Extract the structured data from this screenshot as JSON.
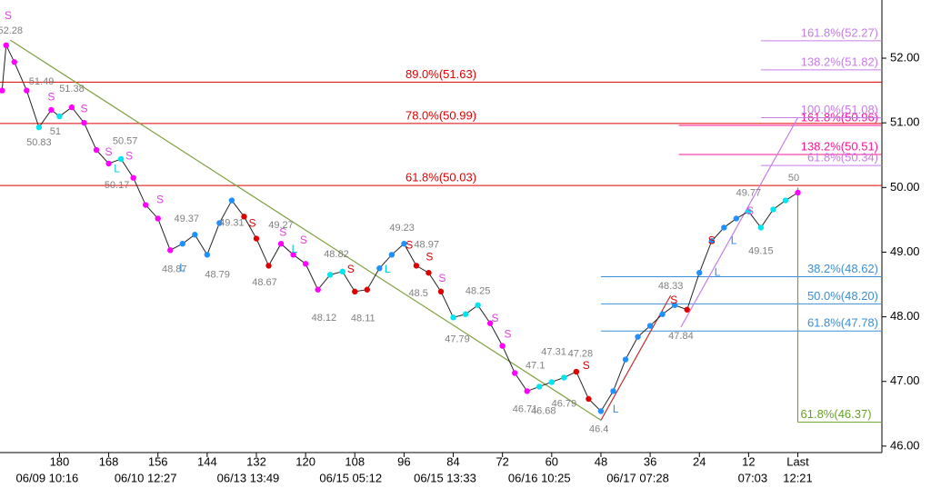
{
  "chart_data": {
    "type": "line",
    "xlim": [
      194.5,
      -20.5
    ],
    "ylim": [
      45.9,
      52.9
    ],
    "xticks": [
      180,
      168,
      156,
      144,
      132,
      120,
      108,
      96,
      84,
      72,
      60,
      48,
      36,
      24,
      12,
      {
        "value": 0,
        "label": "Last"
      }
    ],
    "xticks2": [
      {
        "value": 183,
        "label": "06/09 10:16"
      },
      {
        "value": 159,
        "label": "06/10 12:27"
      },
      {
        "value": 134,
        "label": "06/13 13:49"
      },
      {
        "value": 109,
        "label": "06/15 05:12"
      },
      {
        "value": 86,
        "label": "06/15 13:33"
      },
      {
        "value": 63,
        "label": "06/16 10:25"
      },
      {
        "value": 39,
        "label": "06/17 07:28"
      },
      {
        "value": 11,
        "label": "07:03"
      },
      {
        "value": 0,
        "label": "12:21"
      }
    ],
    "yticks": [
      {
        "value": 46,
        "label": "46.00"
      },
      {
        "value": 47,
        "label": "47.00"
      },
      {
        "value": 48,
        "label": "48.00"
      },
      {
        "value": 49,
        "label": "49.00"
      },
      {
        "value": 50,
        "label": "50.00"
      },
      {
        "value": 51,
        "label": "51.00"
      },
      {
        "value": 52,
        "label": "52.00"
      }
    ],
    "x": [
      194,
      193,
      191,
      188,
      185,
      182,
      180,
      177,
      174,
      171,
      168,
      165,
      162,
      159,
      156,
      153,
      150,
      147,
      144,
      141,
      138,
      135,
      132,
      129,
      126,
      123,
      120,
      117,
      114,
      111,
      108,
      105,
      102,
      99,
      96,
      93,
      90,
      87,
      84,
      81,
      78,
      75,
      72,
      69,
      66,
      63,
      60,
      57,
      54,
      51,
      48,
      45,
      42,
      39,
      36,
      33,
      30,
      27,
      24,
      21,
      18,
      15,
      12,
      9,
      6,
      3,
      0
    ],
    "values": [
      51.5,
      52.2,
      51.94,
      51.5,
      50.93,
      51.2,
      51.1,
      51.24,
      51.0,
      50.58,
      50.37,
      50.44,
      50.15,
      49.73,
      49.52,
      49.03,
      49.13,
      49.27,
      48.96,
      49.45,
      49.8,
      49.55,
      49.21,
      48.79,
      49.13,
      48.96,
      48.82,
      48.42,
      48.65,
      48.7,
      48.39,
      48.42,
      48.75,
      48.96,
      49.13,
      48.79,
      48.68,
      48.39,
      47.99,
      48.04,
      48.18,
      47.9,
      47.55,
      47.13,
      46.85,
      46.92,
      46.99,
      47.06,
      47.15,
      46.73,
      46.54,
      46.85,
      47.34,
      47.69,
      47.86,
      48.04,
      48.18,
      48.11,
      48.68,
      49.17,
      49.38,
      49.52,
      49.63,
      49.38,
      49.66,
      49.8,
      49.92
    ],
    "point_colors": [
      "#ff00ff",
      "#ff00ff",
      "#ff00ff",
      "#ff00ff",
      "#00e5ee",
      "#ff00ff",
      "#00e5ee",
      "#ff00ff",
      "#ff00ff",
      "#ff00ff",
      "#ff00ff",
      "#00e5ee",
      "#ff00ff",
      "#ff00ff",
      "#ff00ff",
      "#ff00ff",
      "#1e90ff",
      "#1e90ff",
      "#1e90ff",
      "#1e90ff",
      "#1e90ff",
      "#e00000",
      "#e00000",
      "#e00000",
      "#ff00ff",
      "#ff00ff",
      "#ff00ff",
      "#ff00ff",
      "#00e5ee",
      "#00e5ee",
      "#e00000",
      "#e00000",
      "#1e90ff",
      "#1e90ff",
      "#1e90ff",
      "#e00000",
      "#e00000",
      "#e00000",
      "#00e5ee",
      "#00e5ee",
      "#00e5ee",
      "#ff00ff",
      "#ff00ff",
      "#ff00ff",
      "#ff00ff",
      "#00e5ee",
      "#00e5ee",
      "#00e5ee",
      "#e00000",
      "#e00000",
      "#1e90ff",
      "#1e90ff",
      "#1e90ff",
      "#1e90ff",
      "#1e90ff",
      "#1e90ff",
      "#1e90ff",
      "#e00000",
      "#1e90ff",
      "#1e90ff",
      "#1e90ff",
      "#1e90ff",
      "#00e5ee",
      "#00e5ee",
      "#00e5ee",
      "#00e5ee",
      "#ff00ff"
    ],
    "levels": [
      {
        "value": 51.63,
        "label": "89.0%(51.63)",
        "color": "#e00000",
        "from": 194.5,
        "label_at": "center"
      },
      {
        "value": 50.99,
        "label": "78.0%(50.99)",
        "color": "#e00000",
        "from": 194.5,
        "label_at": "center"
      },
      {
        "value": 50.03,
        "label": "61.8%(50.03)",
        "color": "#e00000",
        "from": 194.5,
        "label_at": "center"
      },
      {
        "value": 50.96,
        "label": "161.8%(50.96)",
        "color": "#ff1493",
        "from": 29,
        "label_at": "end"
      },
      {
        "value": 50.51,
        "label": "138.2%(50.51)",
        "color": "#ff1493",
        "from": 29,
        "label_at": "end"
      },
      {
        "value": 52.27,
        "label": "161.8%(52.27)",
        "color": "#c77ce8",
        "from": 9,
        "label_at": "end"
      },
      {
        "value": 51.82,
        "label": "138.2%(51.82)",
        "color": "#c77ce8",
        "from": 9,
        "label_at": "end"
      },
      {
        "value": 51.08,
        "label": "100.0%(51.08)",
        "color": "#c77ce8",
        "from": 9,
        "label_at": "end"
      },
      {
        "value": 50.34,
        "label": "61.8%(50.34)",
        "color": "#c77ce8",
        "from": 9,
        "label_at": "end"
      },
      {
        "value": 48.62,
        "label": "38.2%(48.62)",
        "color": "#3c8fd8",
        "from": 48,
        "label_at": "end"
      },
      {
        "value": 48.2,
        "label": "50.0%(48.20)",
        "color": "#3c8fd8",
        "from": 48,
        "label_at": "end"
      },
      {
        "value": 47.78,
        "label": "61.8%(47.78)",
        "color": "#3c8fd8",
        "from": 48,
        "label_at": "end"
      },
      {
        "value": 46.37,
        "label": "61.8%(46.37)",
        "color": "#6aa02a",
        "from": 0,
        "label_at": "start"
      }
    ],
    "trendlines": [
      {
        "from": [
          192,
          52.28
        ],
        "to": [
          48,
          46.4
        ],
        "color": "#7fa040"
      },
      {
        "from": [
          48,
          46.4
        ],
        "to": [
          31,
          48.33
        ],
        "color": "#c03030"
      },
      {
        "from": [
          28.5,
          47.84
        ],
        "to": [
          0,
          51.08
        ],
        "color": "#c77ce8"
      },
      {
        "from": [
          0,
          50.0
        ],
        "to": [
          0,
          46.37
        ],
        "color": "#7fa040"
      }
    ],
    "annotations": [
      {
        "x": 192,
        "value": 52.28,
        "pos": "above"
      },
      {
        "x": 184.4,
        "value": 51.49,
        "pos": "above"
      },
      {
        "x": 177,
        "value": 51.38,
        "pos": "above"
      },
      {
        "x": 181,
        "value": 51.0,
        "pos": "below"
      },
      {
        "x": 185,
        "value": 50.83,
        "pos": "below"
      },
      {
        "x": 164,
        "value": 50.57,
        "pos": "above"
      },
      {
        "x": 166,
        "value": 50.17,
        "pos": "below"
      },
      {
        "x": 149,
        "value": 49.37,
        "pos": "above"
      },
      {
        "x": 152,
        "value": 48.87,
        "pos": "below"
      },
      {
        "x": 141.5,
        "value": 48.79,
        "pos": "below"
      },
      {
        "x": 138,
        "value": 49.31,
        "pos": "above"
      },
      {
        "x": 126,
        "value": 49.27,
        "pos": "above"
      },
      {
        "x": 130,
        "value": 48.67,
        "pos": "below"
      },
      {
        "x": 112.5,
        "value": 48.82,
        "pos": "above"
      },
      {
        "x": 115.5,
        "value": 48.12,
        "pos": "below"
      },
      {
        "x": 106,
        "value": 48.11,
        "pos": "below"
      },
      {
        "x": 96.5,
        "value": 49.23,
        "pos": "above"
      },
      {
        "x": 90.5,
        "value": 48.97,
        "pos": "above"
      },
      {
        "x": 92.5,
        "value": 48.5,
        "pos": "below"
      },
      {
        "x": 78,
        "value": 48.25,
        "pos": "above"
      },
      {
        "x": 83,
        "value": 47.79,
        "pos": "below"
      },
      {
        "x": 59.5,
        "value": 47.31,
        "pos": "above"
      },
      {
        "x": 53,
        "value": 47.28,
        "pos": "above"
      },
      {
        "x": 64,
        "value": 47.1,
        "pos": "above"
      },
      {
        "x": 66.5,
        "value": 46.71,
        "pos": "below"
      },
      {
        "x": 62,
        "value": 46.68,
        "pos": "below"
      },
      {
        "x": 57,
        "value": 46.79,
        "pos": "below"
      },
      {
        "x": 48.5,
        "value": 46.4,
        "pos": "below"
      },
      {
        "x": 31,
        "value": 48.33,
        "pos": "above"
      },
      {
        "x": 28.5,
        "value": 47.84,
        "pos": "below"
      },
      {
        "x": 12,
        "value": 49.77,
        "pos": "above"
      },
      {
        "x": 9,
        "value": 49.15,
        "pos": "below"
      },
      {
        "x": 1,
        "value": 50.0,
        "pos": "above"
      }
    ],
    "signals": [
      {
        "x": 192.5,
        "value": 52.65,
        "label": "S",
        "color": "#e040e0"
      },
      {
        "x": 182,
        "value": 51.39,
        "label": "S",
        "color": "#e040e0"
      },
      {
        "x": 174,
        "value": 51.21,
        "label": "S",
        "color": "#e040e0"
      },
      {
        "x": 168,
        "value": 50.54,
        "label": "S",
        "color": "#e040e0"
      },
      {
        "x": 163,
        "value": 50.48,
        "label": "S",
        "color": "#e040e0"
      },
      {
        "x": 155.5,
        "value": 49.8,
        "label": "S",
        "color": "#e040e0"
      },
      {
        "x": 125.5,
        "value": 49.3,
        "label": "S",
        "color": "#e040e0"
      },
      {
        "x": 120.5,
        "value": 49.18,
        "label": "S",
        "color": "#e040e0"
      },
      {
        "x": 86.7,
        "value": 48.59,
        "label": "S",
        "color": "#e040e0"
      },
      {
        "x": 73.8,
        "value": 47.97,
        "label": "S",
        "color": "#e040e0"
      },
      {
        "x": 70.7,
        "value": 47.72,
        "label": "S",
        "color": "#e040e0"
      },
      {
        "x": 11.6,
        "value": 49.63,
        "label": "S",
        "color": "#e040e0"
      },
      {
        "x": 133,
        "value": 49.44,
        "label": "S",
        "color": "#e00000"
      },
      {
        "x": 109,
        "value": 48.73,
        "label": "S",
        "color": "#e00000"
      },
      {
        "x": 94.7,
        "value": 49.1,
        "label": "S",
        "color": "#e00000"
      },
      {
        "x": 89.8,
        "value": 48.92,
        "label": "S",
        "color": "#e00000"
      },
      {
        "x": 51.6,
        "value": 47.24,
        "label": "S",
        "color": "#e00000"
      },
      {
        "x": 30.2,
        "value": 48.25,
        "label": "S",
        "color": "#e00000"
      },
      {
        "x": 21,
        "value": 49.17,
        "label": "S",
        "color": "#e00000"
      },
      {
        "x": 150,
        "value": 48.75,
        "label": "L",
        "color": "#1e90ff"
      },
      {
        "x": 19.6,
        "value": 48.68,
        "label": "L",
        "color": "#1e90ff"
      },
      {
        "x": 15.6,
        "value": 49.17,
        "label": "L",
        "color": "#1e90ff"
      },
      {
        "x": 44.4,
        "value": 46.56,
        "label": "L",
        "color": "#1e90ff"
      },
      {
        "x": 166,
        "value": 50.28,
        "label": "L",
        "color": "#00c8d8"
      },
      {
        "x": 122.7,
        "value": 49.04,
        "label": "L",
        "color": "#00c8d8"
      },
      {
        "x": 100,
        "value": 48.73,
        "label": "L",
        "color": "#00c8d8"
      }
    ]
  }
}
